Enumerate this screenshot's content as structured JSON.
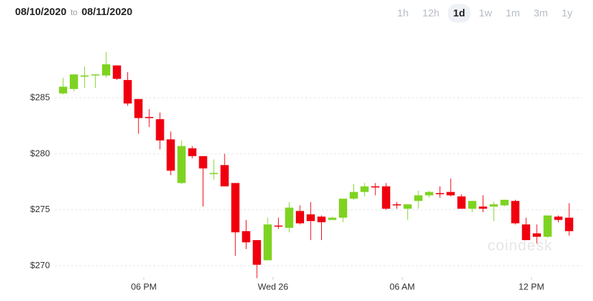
{
  "controls": {
    "date_from": "08/10/2020",
    "separator": "to",
    "date_to": "08/11/2020",
    "ranges": [
      "1h",
      "12h",
      "1d",
      "1w",
      "1m",
      "3m",
      "1y"
    ],
    "selected": 2
  },
  "chart_data": {
    "type": "candlestick",
    "watermark": "coindesk",
    "x": [
      14.25,
      14.75,
      15.25,
      15.75,
      16.25,
      16.75,
      17.25,
      17.75,
      18.25,
      18.75,
      19.25,
      19.75,
      20.25,
      20.75,
      21.25,
      21.75,
      22.25,
      22.75,
      23.25,
      23.75,
      24.25,
      24.75,
      25.25,
      25.75,
      26.25,
      26.75,
      27.25,
      27.75,
      28.25,
      28.75,
      29.25,
      29.75,
      30.25,
      30.75,
      31.25,
      31.75,
      32.25,
      32.75,
      33.25,
      33.75,
      34.25,
      34.75,
      35.25,
      35.75,
      36.25,
      36.75,
      37.25,
      37.75
    ],
    "open": [
      285.4,
      285.8,
      286.9,
      287.0,
      287.0,
      287.9,
      286.6,
      284.9,
      283.3,
      283.1,
      281.3,
      277.4,
      280.5,
      279.8,
      278.2,
      279.0,
      277.4,
      273.1,
      272.3,
      270.5,
      273.6,
      273.4,
      274.9,
      274.6,
      274.4,
      274.1,
      274.3,
      276.0,
      276.6,
      277.1,
      277.1,
      275.5,
      275.1,
      275.8,
      276.3,
      276.5,
      276.6,
      276.2,
      275.1,
      275.3,
      275.3,
      275.4,
      275.8,
      273.7,
      272.9,
      272.6,
      274.4,
      274.3
    ],
    "high": [
      286.8,
      287.1,
      287.8,
      287.1,
      289.1,
      287.9,
      287.3,
      284.9,
      284.0,
      283.7,
      282.0,
      281.2,
      280.7,
      279.8,
      279.5,
      280.0,
      277.4,
      274.1,
      272.3,
      274.3,
      274.3,
      275.7,
      275.4,
      275.7,
      274.5,
      274.4,
      276.0,
      277.3,
      277.4,
      277.4,
      277.4,
      275.7,
      275.5,
      276.7,
      276.7,
      277.1,
      277.8,
      276.4,
      275.8,
      276.3,
      275.7,
      275.9,
      275.9,
      274.3,
      273.7,
      274.5,
      274.5,
      275.6
    ],
    "low": [
      285.3,
      285.6,
      285.9,
      285.9,
      286.8,
      286.6,
      284.3,
      281.8,
      282.4,
      280.4,
      278.1,
      277.3,
      279.6,
      275.3,
      277.7,
      277.1,
      270.9,
      271.5,
      268.9,
      270.5,
      273.3,
      273.0,
      273.7,
      272.3,
      272.3,
      274.1,
      273.9,
      275.9,
      276.2,
      276.3,
      275.0,
      275.1,
      274.1,
      275.1,
      276.1,
      276.1,
      276.2,
      275.1,
      274.8,
      274.8,
      274.0,
      275.3,
      273.7,
      272.3,
      272.0,
      272.5,
      273.9,
      272.7
    ],
    "close": [
      286.0,
      287.1,
      287.0,
      287.1,
      288.0,
      286.7,
      284.5,
      283.2,
      283.2,
      281.2,
      278.5,
      280.7,
      279.8,
      278.7,
      278.3,
      277.1,
      273.0,
      272.1,
      270.1,
      273.7,
      273.5,
      275.2,
      273.8,
      274.0,
      273.9,
      274.3,
      276.0,
      276.6,
      277.1,
      277.0,
      275.1,
      275.4,
      275.5,
      276.3,
      276.6,
      276.4,
      276.3,
      275.1,
      275.8,
      275.1,
      275.5,
      275.9,
      273.8,
      272.3,
      272.6,
      274.5,
      274.1,
      273.1
    ],
    "up_color": "#7ed321",
    "down_color": "#f0000f",
    "grid": true,
    "xlim": [
      11.32,
      38.35
    ],
    "xticks": [
      {
        "value": 18,
        "label": "06 PM"
      },
      {
        "value": 24,
        "label": "Wed 26"
      },
      {
        "value": 30,
        "label": "06 AM"
      },
      {
        "value": 36,
        "label": "12 PM"
      }
    ],
    "ylim": [
      269.0,
      291.3
    ],
    "yticks": [
      {
        "value": 270,
        "label": "$270"
      },
      {
        "value": 275,
        "label": "$275"
      },
      {
        "value": 280,
        "label": "$280"
      },
      {
        "value": 285,
        "label": "$285"
      }
    ]
  }
}
